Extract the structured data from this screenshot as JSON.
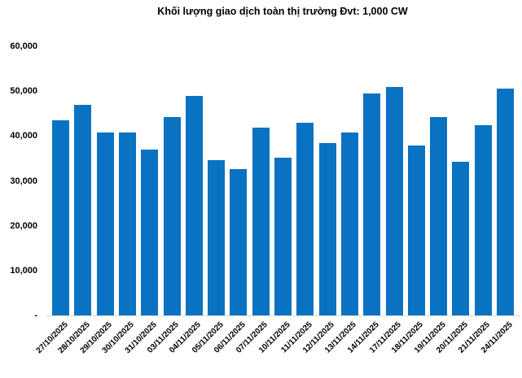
{
  "chart_data": {
    "type": "bar",
    "title": "Khối lượng giao dịch toàn thị trường Đvt: 1,000 CW",
    "categories": [
      "27/10/2025",
      "28/10/2025",
      "29/10/2025",
      "30/10/2025",
      "31/10/2025",
      "03/11/2025",
      "04/11/2025",
      "05/11/2025",
      "06/11/2025",
      "07/11/2025",
      "10/11/2025",
      "11/11/2025",
      "12/11/2025",
      "13/11/2025",
      "14/11/2025",
      "17/11/2025",
      "18/11/2025",
      "19/11/2025",
      "20/11/2025",
      "21/11/2025",
      "24/11/2025"
    ],
    "values": [
      43500,
      46900,
      40700,
      40800,
      37000,
      44300,
      48900,
      34600,
      32600,
      41900,
      35200,
      43000,
      38400,
      40800,
      49500,
      50900,
      37800,
      44300,
      34200,
      42400,
      50600
    ],
    "xlabel": "",
    "ylabel": "",
    "ylim": [
      0,
      60000
    ],
    "y_ticks": [
      {
        "value": 0,
        "label": "-"
      },
      {
        "value": 10000,
        "label": "10,000"
      },
      {
        "value": 20000,
        "label": "20,000"
      },
      {
        "value": 30000,
        "label": "30,000"
      },
      {
        "value": 40000,
        "label": "40,000"
      },
      {
        "value": 50000,
        "label": "50,000"
      },
      {
        "value": 60000,
        "label": "60,000"
      }
    ],
    "grid": false,
    "legend": "none",
    "colors": {
      "bar": "#0a72c2",
      "axis_line": "#d9d9d9",
      "text": "#000000",
      "background": "#ffffff"
    }
  }
}
